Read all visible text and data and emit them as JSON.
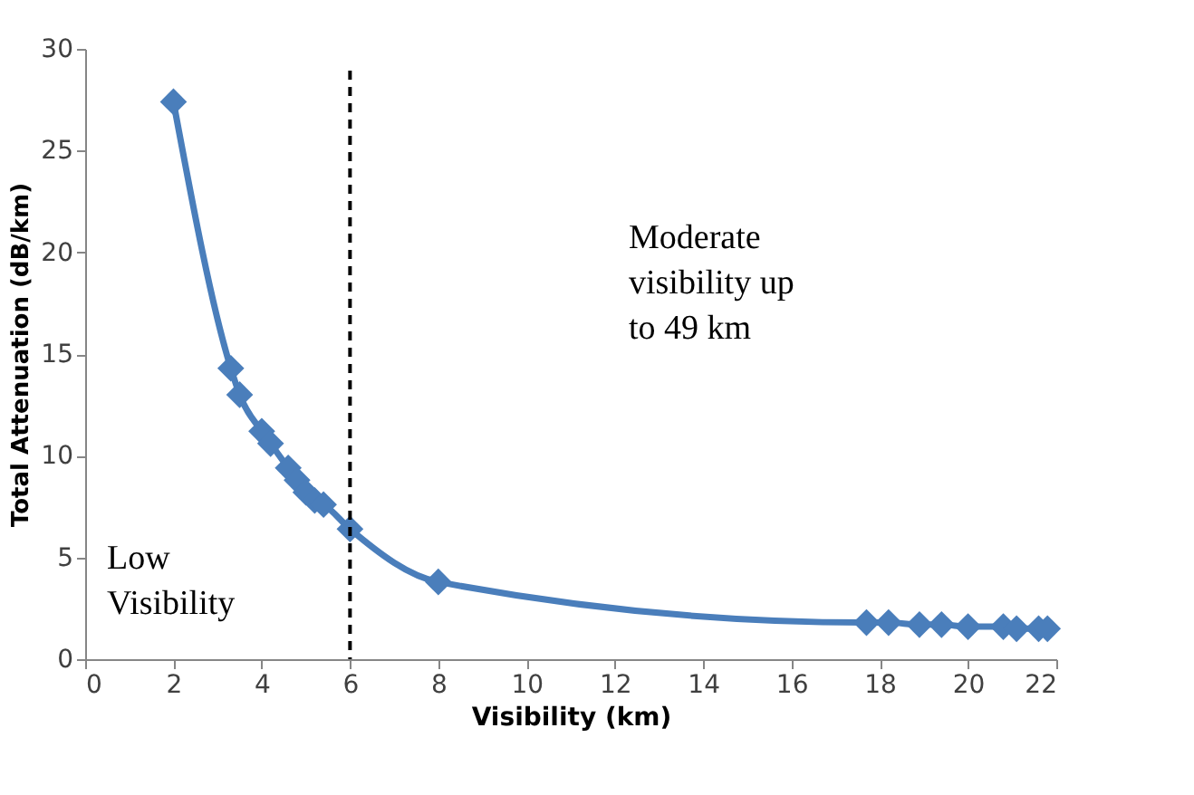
{
  "chart_data": {
    "type": "line",
    "xlabel": "Visibility (km)",
    "ylabel": "Total Attenuation (dB/km)",
    "x": [
      2,
      3.3,
      3.5,
      4,
      4.2,
      4.6,
      4.8,
      5,
      5.2,
      5.4,
      6,
      8,
      17.7,
      18.2,
      18.9,
      19.4,
      20,
      20.8,
      21.1,
      21.6,
      21.8
    ],
    "series": [
      {
        "color": "#4a7ebb",
        "values": [
          27.4,
          14.3,
          13.0,
          11.2,
          10.6,
          9.4,
          8.8,
          8.2,
          7.8,
          7.6,
          6.4,
          3.8,
          1.8,
          1.8,
          1.7,
          1.7,
          1.6,
          1.6,
          1.5,
          1.5,
          1.5
        ]
      }
    ],
    "xlim": [
      0,
      22
    ],
    "xticks": [
      0,
      2,
      4,
      6,
      8,
      10,
      12,
      14,
      16,
      18,
      20,
      22
    ],
    "ylim": [
      0,
      30
    ],
    "yticks": [
      0,
      5,
      10,
      15,
      20,
      25,
      30
    ],
    "marker": "diamond",
    "line_style": "solid",
    "grid": false,
    "ref_lines": [
      {
        "axis": "x",
        "value": 6,
        "color": "#000000",
        "line_style": "dashed"
      }
    ],
    "annotations": [
      "Low\nVisibility",
      "Moderate\nvisibility up\nto 49 km"
    ]
  }
}
